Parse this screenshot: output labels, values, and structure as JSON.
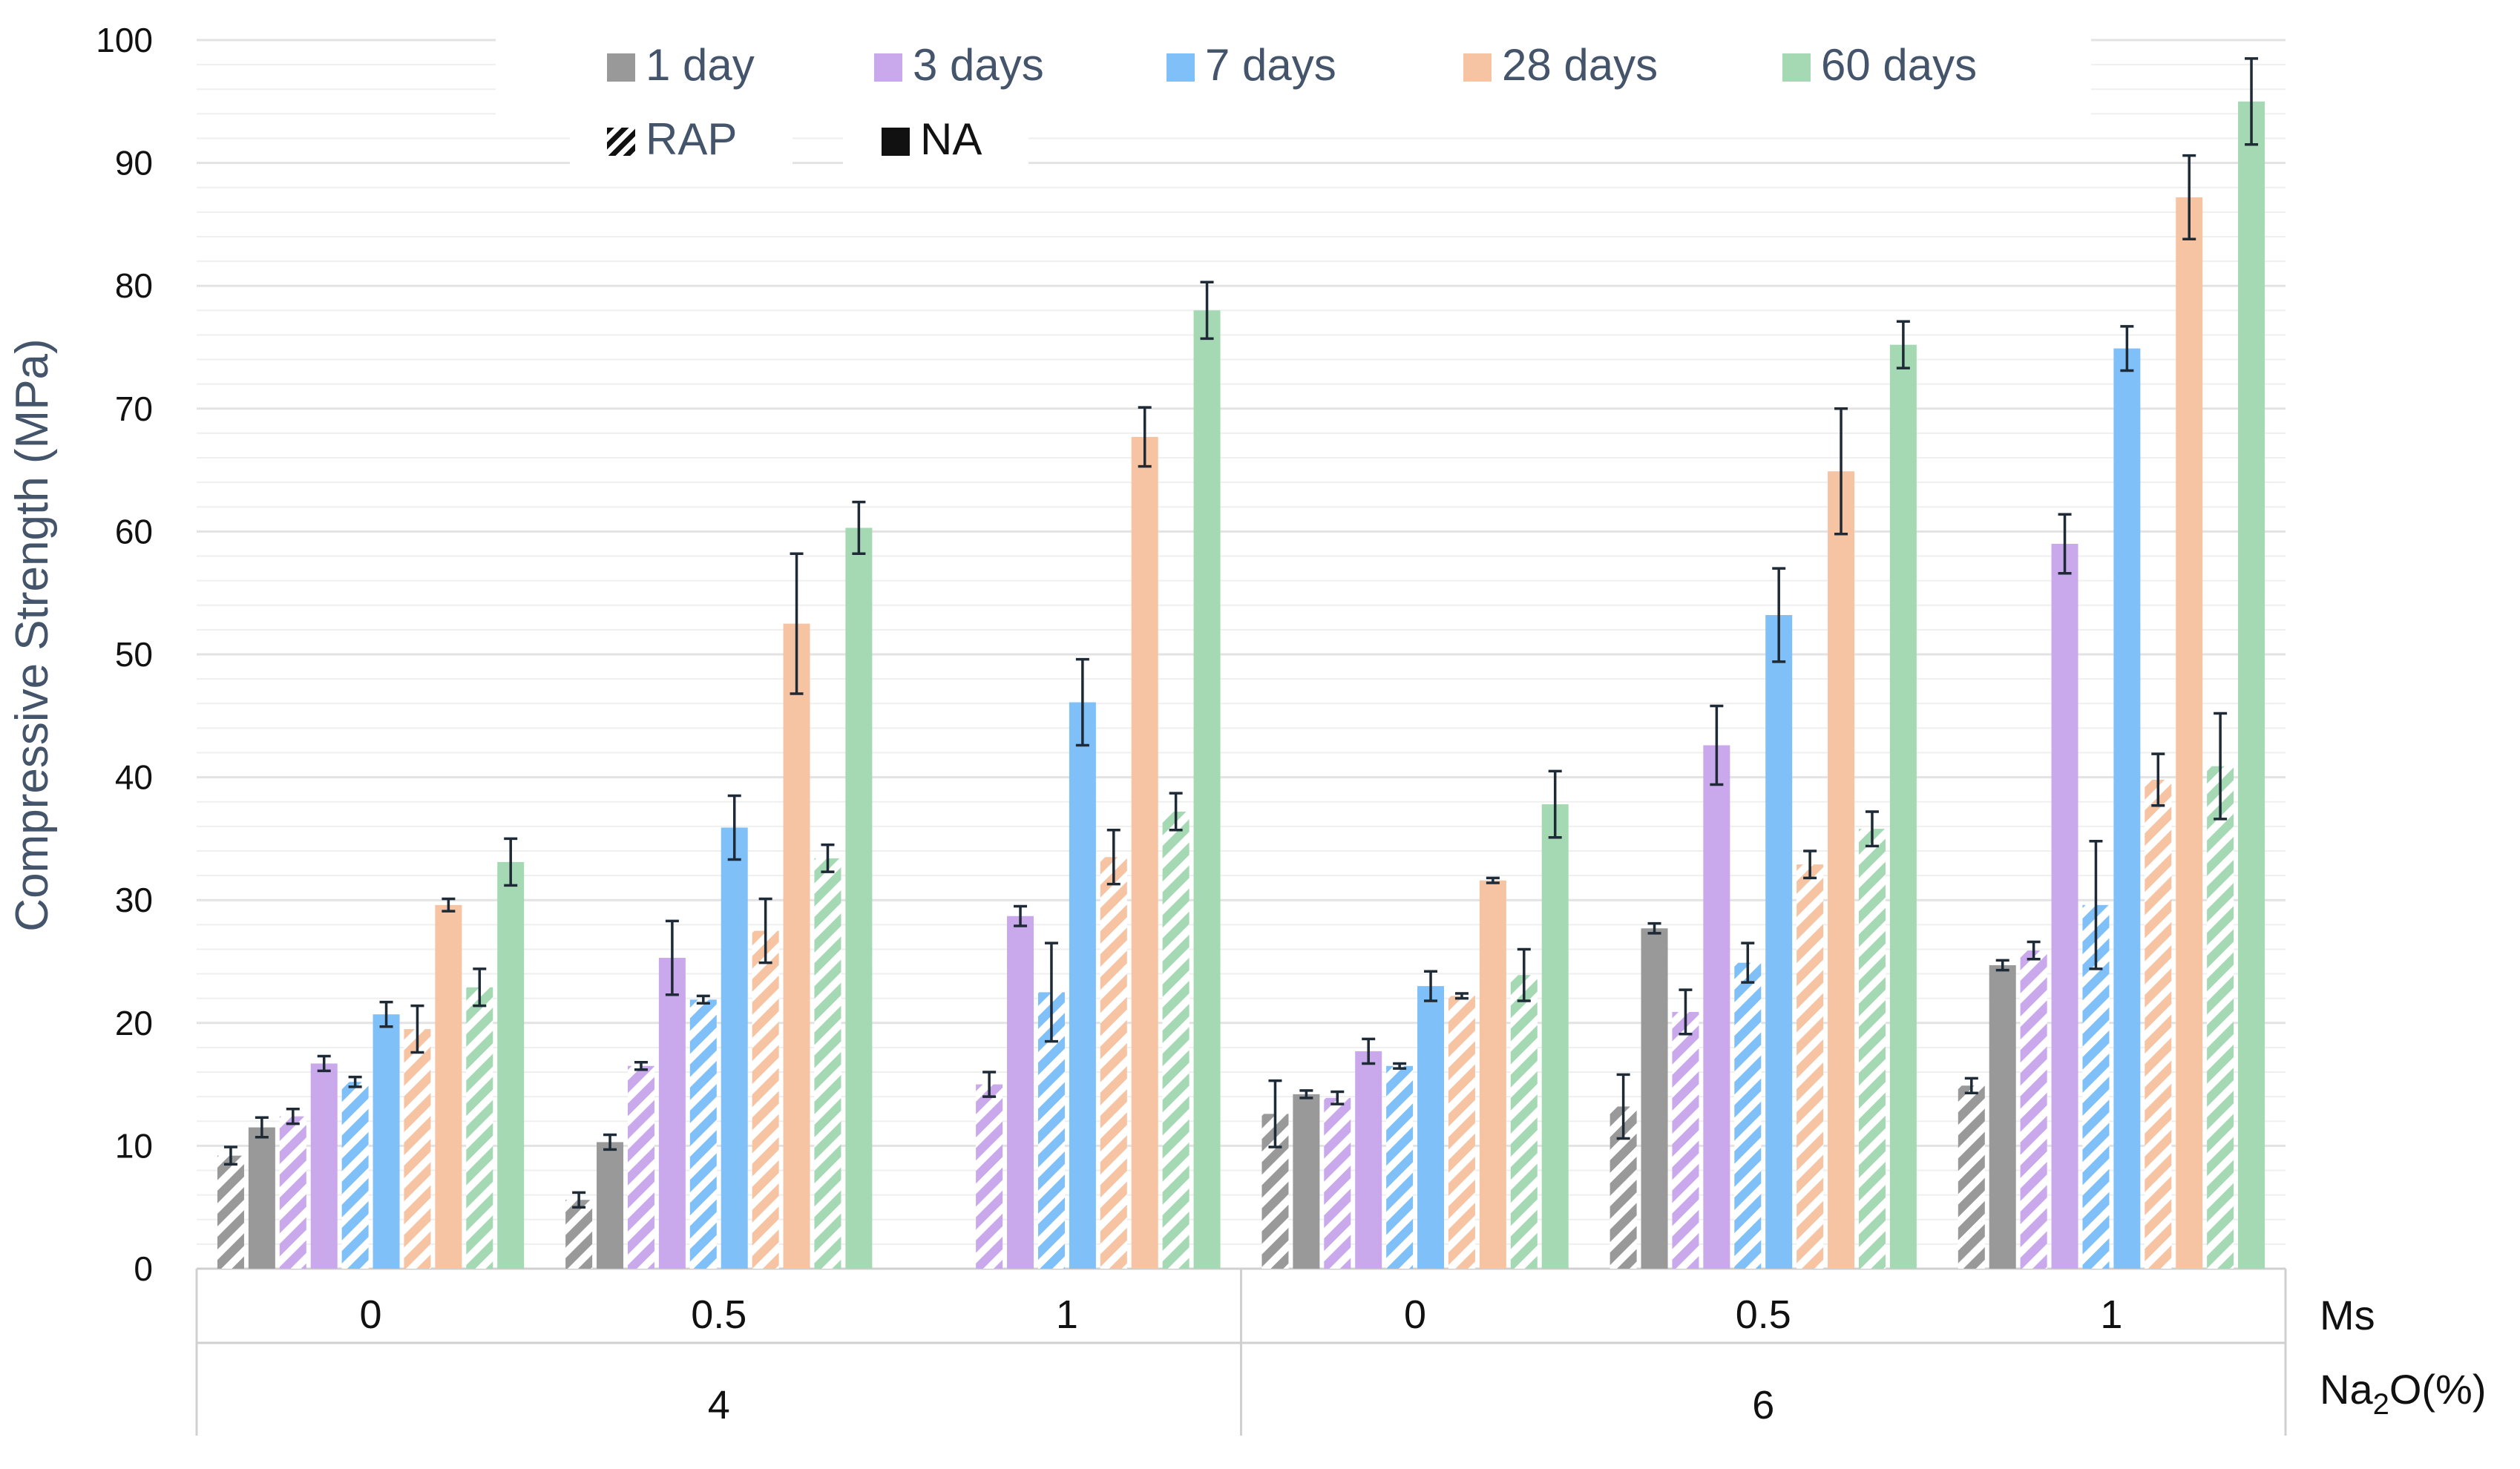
{
  "chart_data": {
    "type": "bar",
    "ylabel": "Compressive Strength (MPa)",
    "ylim": [
      0,
      100
    ],
    "yticks": [
      "0",
      "10",
      "20",
      "30",
      "40",
      "50",
      "60",
      "70",
      "80",
      "90",
      "100"
    ],
    "x_outer_label": "Na2O(%)",
    "x_inner_label": "Ms",
    "groups": [
      {
        "label": "4",
        "ms": [
          "0",
          "0.5",
          "1"
        ]
      },
      {
        "label": "6",
        "ms": [
          "0",
          "0.5",
          "1"
        ]
      }
    ],
    "categories": [
      "4 / Ms 0",
      "4 / Ms 0.5",
      "4 / Ms 1",
      "6 / Ms 0",
      "6 / Ms 0.5",
      "6 / Ms 1"
    ],
    "ages": [
      "1 day",
      "3 days",
      "7 days",
      "28 days",
      "60 days"
    ],
    "aggregate_types": [
      "RAP",
      "NA"
    ],
    "colors": {
      "1 day": "#999999",
      "3 days": "#c9a8ec",
      "7 days": "#7fc0f8",
      "28 days": "#f6c4a2",
      "60 days": "#a5d9b3"
    },
    "series": [
      {
        "name": "1 day RAP",
        "age": "1 day",
        "aggregate": "RAP",
        "values": [
          9.2,
          5.6,
          null,
          12.6,
          13.2,
          14.9
        ],
        "errors": [
          0.7,
          0.6,
          null,
          2.7,
          2.6,
          0.6
        ]
      },
      {
        "name": "1 day NA",
        "age": "1 day",
        "aggregate": "NA",
        "values": [
          11.5,
          10.3,
          null,
          14.2,
          27.7,
          24.7
        ],
        "errors": [
          0.8,
          0.6,
          null,
          0.3,
          0.4,
          0.4
        ]
      },
      {
        "name": "3 days RAP",
        "age": "3 days",
        "aggregate": "RAP",
        "values": [
          12.4,
          16.5,
          15.0,
          13.9,
          20.9,
          25.9
        ],
        "errors": [
          0.6,
          0.3,
          1.0,
          0.5,
          1.8,
          0.7
        ]
      },
      {
        "name": "3 days NA",
        "age": "3 days",
        "aggregate": "NA",
        "values": [
          16.7,
          25.3,
          28.7,
          17.7,
          42.6,
          59.0
        ],
        "errors": [
          0.6,
          3.0,
          0.8,
          1.0,
          3.2,
          2.4
        ]
      },
      {
        "name": "7 days RAP",
        "age": "7 days",
        "aggregate": "RAP",
        "values": [
          15.2,
          21.9,
          22.5,
          16.5,
          24.9,
          29.6
        ],
        "errors": [
          0.4,
          0.3,
          4.0,
          0.2,
          1.6,
          5.2
        ]
      },
      {
        "name": "7 days NA",
        "age": "7 days",
        "aggregate": "NA",
        "values": [
          20.7,
          35.9,
          46.1,
          23.0,
          53.2,
          74.9
        ],
        "errors": [
          1.0,
          2.6,
          3.5,
          1.2,
          3.8,
          1.8
        ]
      },
      {
        "name": "28 days RAP",
        "age": "28 days",
        "aggregate": "RAP",
        "values": [
          19.5,
          27.5,
          33.5,
          22.2,
          32.9,
          39.8
        ],
        "errors": [
          1.9,
          2.6,
          2.2,
          0.2,
          1.1,
          2.1
        ]
      },
      {
        "name": "28 days NA",
        "age": "28 days",
        "aggregate": "NA",
        "values": [
          29.6,
          52.5,
          67.7,
          31.6,
          64.9,
          87.2
        ],
        "errors": [
          0.5,
          5.7,
          2.4,
          0.2,
          5.1,
          3.4
        ]
      },
      {
        "name": "60 days RAP",
        "age": "60 days",
        "aggregate": "RAP",
        "values": [
          22.9,
          33.4,
          37.2,
          23.9,
          35.8,
          40.9
        ],
        "errors": [
          1.5,
          1.1,
          1.5,
          2.1,
          1.4,
          4.3
        ]
      },
      {
        "name": "60 days NA",
        "age": "60 days",
        "aggregate": "NA",
        "values": [
          33.1,
          60.3,
          78.0,
          37.8,
          75.2,
          95.0
        ],
        "errors": [
          1.9,
          2.1,
          2.3,
          2.7,
          1.9,
          3.5
        ]
      }
    ],
    "legend": {
      "position": "top-center",
      "ages": [
        "1 day",
        "3 days",
        "7 days",
        "28 days",
        "60 days"
      ],
      "types": [
        "RAP",
        "NA"
      ]
    },
    "grid": true
  }
}
